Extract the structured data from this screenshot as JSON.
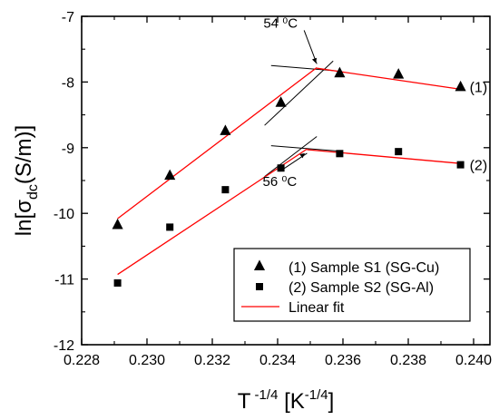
{
  "chart_data": {
    "type": "scatter",
    "xlim": [
      0.228,
      0.2405
    ],
    "ylim": [
      -12,
      -7
    ],
    "x_ticks": [
      "0.228",
      "0.230",
      "0.232",
      "0.234",
      "0.236",
      "0.238",
      "0.240"
    ],
    "y_ticks": [
      "-7",
      "-8",
      "-9",
      "-10",
      "-11",
      "-12"
    ],
    "xlabel": {
      "base": "T",
      "sup": "-1/4",
      "tail": " [K",
      "tail_sup": "-1/4",
      "close": "]"
    },
    "ylabel": {
      "pre": "ln[σ",
      "sub": "dc",
      "post": "(S/m)]"
    },
    "series": [
      {
        "name": "(1) Sample S1 (SG-Cu)",
        "marker": "triangle",
        "color": "#000000",
        "x": [
          0.2291,
          0.2307,
          0.2324,
          0.2341,
          0.2359,
          0.2377,
          0.2396
        ],
        "y": [
          -10.17,
          -9.42,
          -8.74,
          -8.31,
          -7.86,
          -7.88,
          -8.07
        ]
      },
      {
        "name": "(2) Sample S2 (SG-Al)",
        "marker": "square",
        "color": "#000000",
        "x": [
          0.2291,
          0.2307,
          0.2324,
          0.2341,
          0.2359,
          0.2377,
          0.2396
        ],
        "y": [
          -11.06,
          -10.21,
          -9.64,
          -9.31,
          -9.09,
          -9.06,
          -9.26
        ]
      }
    ],
    "fits": [
      {
        "name": "Linear fit",
        "color": "#ff0000",
        "x": [
          0.2291,
          0.2352
        ],
        "y": [
          -10.08,
          -7.78
        ]
      },
      {
        "color": "#ff0000",
        "x": [
          0.2352,
          0.2396
        ],
        "y": [
          -7.79,
          -8.11
        ]
      },
      {
        "color": "#ff0000",
        "x": [
          0.2291,
          0.2349
        ],
        "y": [
          -10.93,
          -9.02
        ]
      },
      {
        "color": "#ff0000",
        "x": [
          0.2349,
          0.2396
        ],
        "y": [
          -9.03,
          -9.24
        ]
      }
    ],
    "extensions": [
      {
        "color": "#000000",
        "x": [
          0.2336,
          0.2357
        ],
        "y": [
          -8.66,
          -7.68
        ]
      },
      {
        "color": "#000000",
        "x": [
          0.2338,
          0.2358
        ],
        "y": [
          -7.75,
          -7.83
        ]
      },
      {
        "color": "#000000",
        "x": [
          0.2336,
          0.2352
        ],
        "y": [
          -9.44,
          -8.83
        ]
      },
      {
        "color": "#000000",
        "x": [
          0.2338,
          0.2358
        ],
        "y": [
          -8.97,
          -9.05
        ]
      }
    ],
    "annotations": [
      {
        "label": "54 ⁰C",
        "point": [
          0.2352,
          -7.78
        ]
      },
      {
        "label": "56 ⁰C",
        "point": [
          0.2349,
          -9.03
        ]
      }
    ],
    "series_end_labels": [
      "(1)",
      "(2)"
    ],
    "legend": {
      "position": "bottom-right",
      "entries": [
        "(1) Sample S1 (SG-Cu)",
        "(2) Sample S2 (SG-Al)",
        "Linear fit"
      ]
    }
  }
}
